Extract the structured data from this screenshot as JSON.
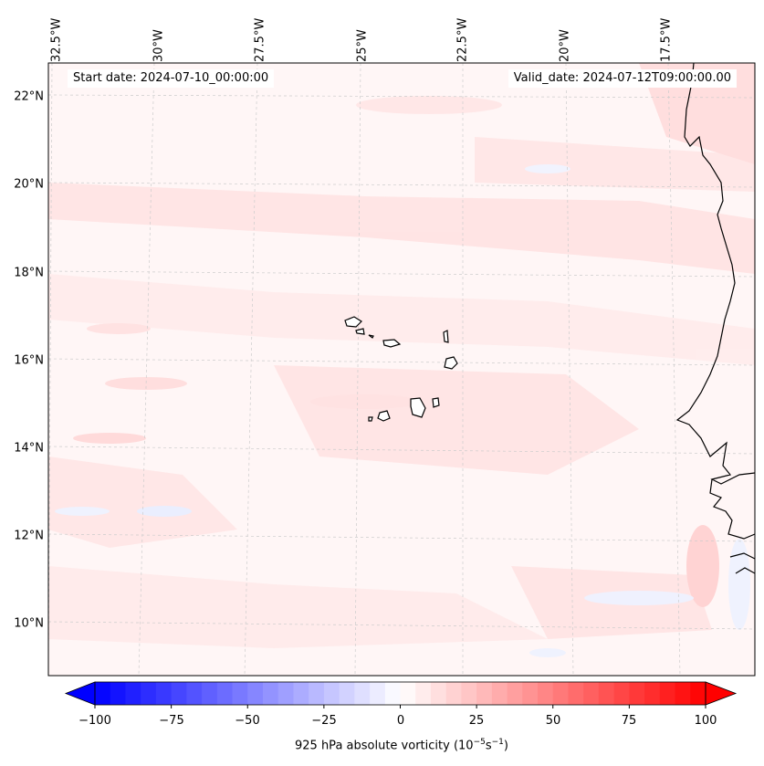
{
  "map": {
    "start_date": "Start date: 2024-07-10_00:00:00",
    "valid_date": "Valid_date: 2024-07-12T09:00:00.00",
    "longitude_labels": [
      "32.5°W",
      "30°W",
      "27.5°W",
      "25°W",
      "22.5°W",
      "20°W",
      "17.5°W"
    ],
    "latitude_labels": [
      "22°N",
      "20°N",
      "18°N",
      "16°N",
      "14°N",
      "12°N",
      "10°N"
    ],
    "features": [
      "Cape Verde islands",
      "West African coastline",
      "vorticity shading"
    ]
  },
  "colorbar": {
    "label_text": "925 hPa absolute vorticity (10",
    "exp1": "−5",
    "mid": "s",
    "exp2": "−1",
    "close": ")",
    "ticks": [
      "−100",
      "−75",
      "−50",
      "−25",
      "0",
      "25",
      "50",
      "75",
      "100"
    ],
    "min": -100,
    "max": 100,
    "step": 5,
    "colors": {
      "negative": "#0000ff",
      "neutral": "#ffffff",
      "positive": "#ff0000"
    }
  }
}
